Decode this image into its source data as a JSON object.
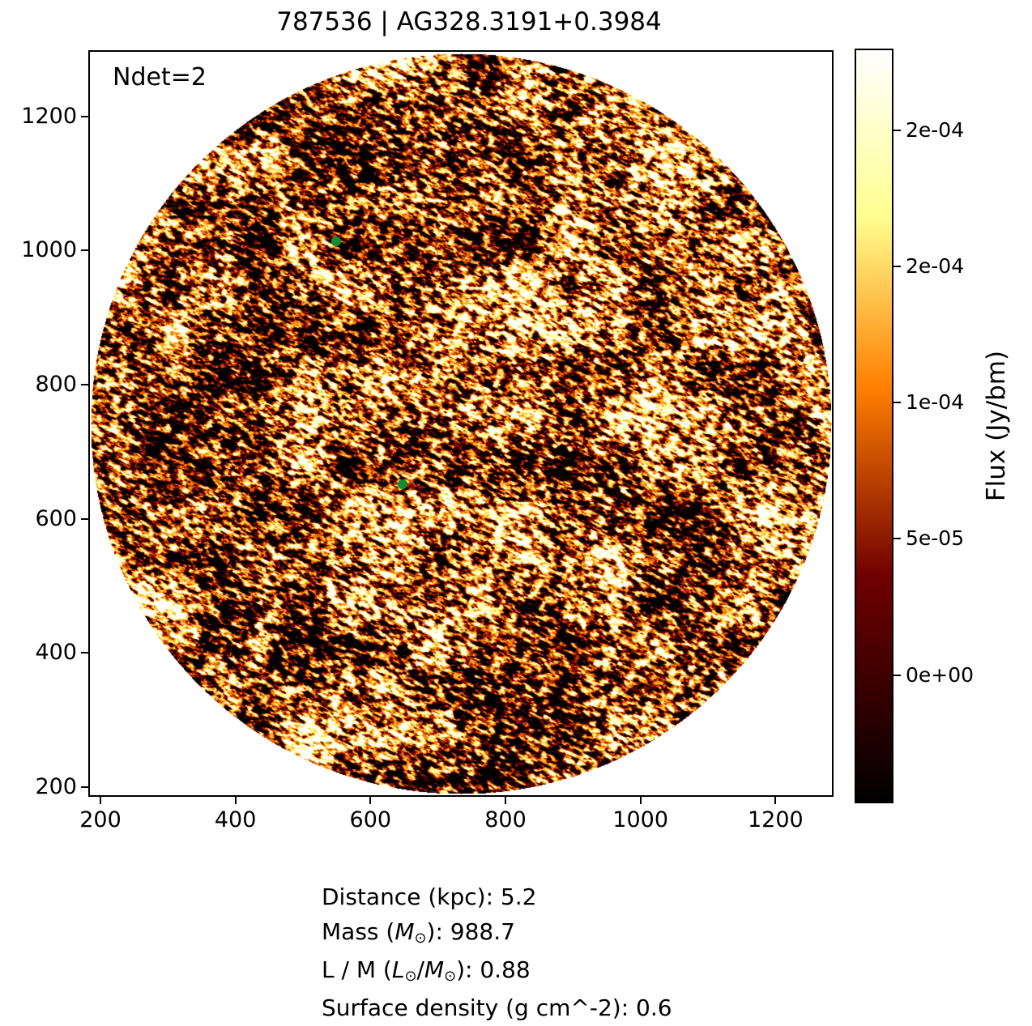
{
  "chart_data": {
    "type": "heatmap",
    "title": "787536 | AG328.3191+0.3984",
    "annotation": "Ndet=2",
    "ndet": 2,
    "xlabel": "",
    "ylabel": "",
    "xlim": [
      182,
      1286
    ],
    "ylim": [
      185,
      1299
    ],
    "x_ticks": [
      200,
      400,
      600,
      800,
      1000,
      1200
    ],
    "y_ticks": [
      200,
      400,
      600,
      800,
      1000,
      1200
    ],
    "grid": false,
    "legend": null,
    "image": {
      "shape": "circle inscribed in square axes",
      "colormap": "afmhot",
      "description": "grainy filamentary flux noise map: black voids with dark-red, orange, yellow and white wisps filling a circular field; white outside the circle"
    },
    "detections": [
      {
        "x": 549,
        "y": 1014
      },
      {
        "x": 648,
        "y": 651
      }
    ],
    "detection_color": "#0d8e34",
    "detection_marker_px": 12,
    "colorbar": {
      "label": "Flux (Jy/bm)",
      "ticks": [
        {
          "label": "2e-04",
          "frac_from_top": 0.108
        },
        {
          "label": "2e-04",
          "frac_from_top": 0.2885
        },
        {
          "label": "1e-04",
          "frac_from_top": 0.469
        },
        {
          "label": "5e-05",
          "frac_from_top": 0.6495
        },
        {
          "label": "0e+00",
          "frac_from_top": 0.83
        }
      ],
      "gradient_stops_bottom_to_top": [
        "#000000",
        "#700000",
        "#ff7f00",
        "#ffff90",
        "#ffffff"
      ],
      "gradient_positions_pct": [
        0,
        30,
        55,
        78,
        100
      ]
    }
  },
  "stats": {
    "distance_kpc": "5.2",
    "mass_msun": "988.7",
    "l_over_m": "0.88",
    "surface_density_g_cm2": "0.6"
  },
  "footer": {
    "lines": [
      {
        "segments": [
          {
            "t": "Distance (kpc): 5.2"
          }
        ]
      },
      {
        "segments": [
          {
            "t": "Mass ("
          },
          {
            "t": "M",
            "italic": true
          },
          {
            "t": "⊙",
            "sub": true
          },
          {
            "t": "): 988.7"
          }
        ]
      },
      {
        "segments": [
          {
            "t": "L / M ("
          },
          {
            "t": "L",
            "italic": true
          },
          {
            "t": "⊙",
            "sub": true
          },
          {
            "t": "/"
          },
          {
            "t": "M",
            "italic": true
          },
          {
            "t": "⊙",
            "sub": true
          },
          {
            "t": "): 0.88"
          }
        ]
      },
      {
        "segments": [
          {
            "t": "Surface density (g cm^-2): 0.6"
          }
        ]
      }
    ]
  }
}
